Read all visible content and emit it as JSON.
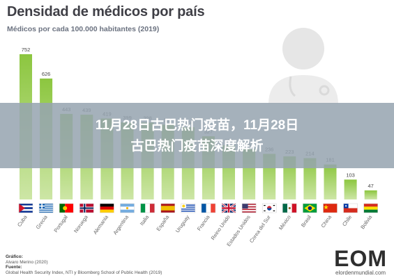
{
  "header": {
    "title": "Densidad de médicos por país",
    "subtitle": "Médicos por cada 100.000 habitantes (2019)"
  },
  "overlay": {
    "line1": "11月28日古巴热门疫苗，11月28日",
    "line2": "古巴热门疫苗深度解析"
  },
  "footer": {
    "graphic_label": "Gráfico:",
    "graphic_author": "Alvaro Merino (2020)",
    "source_label": "Fuente:",
    "source_text": "Global Health Security Index, NTI y Bloomberg School of Public Health (2019)"
  },
  "logo": {
    "mark": "EOM",
    "site": "elordenmundial.com"
  },
  "colors": {
    "bar_top": "#8cc63f",
    "bar_bottom": "#cde6a6"
  },
  "chart_data": {
    "type": "bar",
    "title": "Densidad de médicos por país",
    "subtitle": "Médicos por cada 100.000 habitantes (2019)",
    "categories": [
      "Cuba",
      "Grecia",
      "Portugal",
      "Noruega",
      "Alemania",
      "Argentina",
      "Italia",
      "España",
      "Uruguay",
      "Francia",
      "Reino Unido",
      "Estados Unidos",
      "Corea del Sur",
      "México",
      "Brasil",
      "China",
      "Chile",
      "Bolivia"
    ],
    "values": [
      752,
      626,
      443,
      439,
      419,
      399,
      398,
      387,
      374,
      327,
      281,
      261,
      236,
      223,
      214,
      181,
      103,
      47
    ],
    "ylim": [
      0,
      800
    ],
    "grid": false,
    "legend": "none",
    "flags": [
      "cuba-flag",
      "greece-flag",
      "portugal-flag",
      "norway-flag",
      "germany-flag",
      "argentina-flag",
      "italy-flag",
      "spain-flag",
      "uruguay-flag",
      "france-flag",
      "uk-flag",
      "usa-flag",
      "south-korea-flag",
      "mexico-flag",
      "brazil-flag",
      "china-flag",
      "chile-flag",
      "bolivia-flag"
    ]
  }
}
